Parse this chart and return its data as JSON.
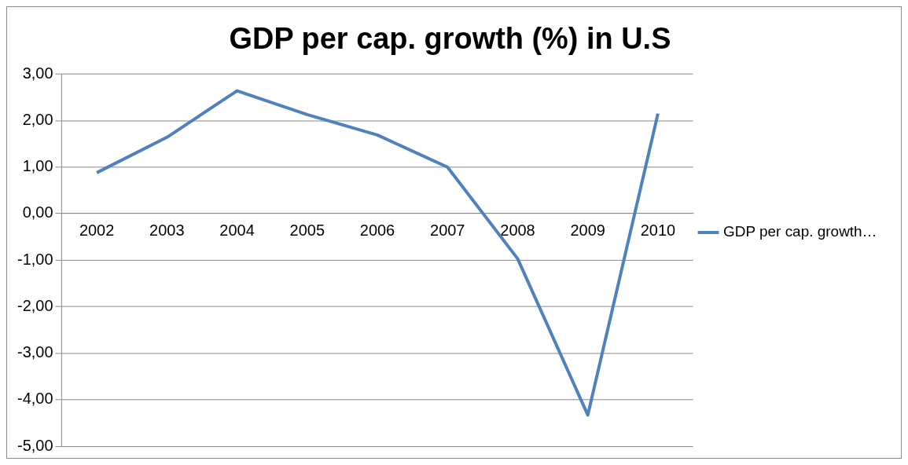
{
  "chart_data": {
    "type": "line",
    "title": "GDP per cap. growth (%) in U.S",
    "categories": [
      "2002",
      "2003",
      "2004",
      "2005",
      "2006",
      "2007",
      "2008",
      "2009",
      "2010"
    ],
    "series": [
      {
        "name": "GDP per cap. growth…",
        "color": "#4f81bd",
        "values": [
          0.88,
          1.64,
          2.64,
          2.13,
          1.69,
          1.0,
          -0.97,
          -4.33,
          2.15
        ]
      }
    ],
    "ylim": [
      -5,
      3
    ],
    "yticks": [
      {
        "value": -5,
        "label": "-5,00"
      },
      {
        "value": -4,
        "label": "-4,00"
      },
      {
        "value": -3,
        "label": "-3,00"
      },
      {
        "value": -2,
        "label": "-2,00"
      },
      {
        "value": -1,
        "label": "-1,00"
      },
      {
        "value": 0,
        "label": "0,00"
      },
      {
        "value": 1,
        "label": "1,00"
      },
      {
        "value": 2,
        "label": "2,00"
      },
      {
        "value": 3,
        "label": "3,00"
      }
    ],
    "grid": "y",
    "legend": "right",
    "marker": "none",
    "line_style": "solid"
  }
}
